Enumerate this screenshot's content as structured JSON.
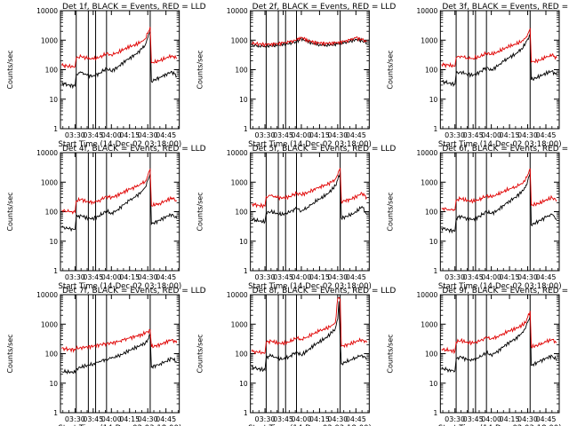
{
  "figure": {
    "colors": {
      "events": "#000000",
      "lld": "#e00000",
      "background": "#ffffff"
    },
    "x_tick_labels": [
      "03:30",
      "03:45",
      "04:00",
      "04:15",
      "04:30",
      "04:45"
    ],
    "x_tick_minutes": [
      210,
      225,
      240,
      255,
      270,
      285
    ],
    "y_tick_labels": [
      "1",
      "10",
      "100",
      "1000",
      "10000"
    ],
    "y_tick_values": [
      1,
      10,
      100,
      1000,
      10000
    ],
    "ylabel": "Counts/sec",
    "xlabel": "Start Time (14-Dec-02 03:18:00)",
    "xlim_minutes": [
      198,
      296
    ],
    "vertical_marker_minutes": [
      211,
      221,
      227,
      236,
      272
    ]
  },
  "chart_data": [
    {
      "type": "line",
      "title": "Det 1f, BLACK = Events, RED = LLD",
      "xlabel": "Start Time (14-Dec-02 03:18:00)",
      "ylabel": "Counts/sec",
      "ylim": [
        1,
        10000
      ],
      "yscale": "log",
      "series": [
        {
          "name": "Events",
          "color": "#000000",
          "x": [
            199,
            205,
            210,
            211,
            215,
            220,
            225,
            230,
            236,
            240,
            245,
            250,
            255,
            260,
            265,
            268,
            270,
            272,
            273,
            280,
            285,
            290,
            294
          ],
          "values": [
            35,
            30,
            28,
            70,
            80,
            65,
            60,
            75,
            110,
            90,
            120,
            180,
            250,
            330,
            500,
            700,
            1200,
            2000,
            40,
            55,
            70,
            85,
            60
          ]
        },
        {
          "name": "LLD",
          "color": "#e00000",
          "x": [
            199,
            205,
            210,
            211,
            215,
            220,
            225,
            230,
            236,
            240,
            245,
            250,
            255,
            260,
            265,
            268,
            270,
            272,
            273,
            280,
            285,
            290,
            294
          ],
          "values": [
            140,
            130,
            125,
            250,
            280,
            240,
            230,
            260,
            350,
            320,
            380,
            480,
            600,
            700,
            900,
            1100,
            1700,
            2800,
            170,
            200,
            250,
            300,
            240
          ]
        }
      ]
    },
    {
      "type": "line",
      "title": "Det 2f, BLACK = Events, RED = LLD",
      "xlabel": "Start Time (14-Dec-02 03:18:00)",
      "ylabel": "Counts/sec",
      "ylim": [
        1,
        10000
      ],
      "yscale": "log",
      "series": [
        {
          "name": "Events",
          "color": "#000000",
          "x": [
            199,
            205,
            210,
            215,
            220,
            225,
            230,
            236,
            240,
            245,
            250,
            255,
            260,
            265,
            270,
            275,
            280,
            285,
            290,
            294
          ],
          "values": [
            680,
            640,
            620,
            640,
            660,
            700,
            760,
            900,
            1100,
            900,
            760,
            700,
            680,
            700,
            740,
            800,
            900,
            1050,
            950,
            800
          ]
        },
        {
          "name": "LLD",
          "color": "#e00000",
          "x": [
            199,
            205,
            210,
            215,
            220,
            225,
            230,
            236,
            240,
            245,
            250,
            255,
            260,
            265,
            270,
            275,
            280,
            285,
            290,
            294
          ],
          "values": [
            780,
            740,
            720,
            740,
            760,
            800,
            860,
            1000,
            1250,
            1000,
            860,
            800,
            780,
            800,
            840,
            900,
            1000,
            1200,
            1050,
            900
          ]
        }
      ]
    },
    {
      "type": "line",
      "title": "Det 3f, BLACK = Events, RED = LLD",
      "xlabel": "Start Time (14-Dec-02 03:18:00)",
      "ylabel": "Counts/sec",
      "ylim": [
        1,
        10000
      ],
      "yscale": "log",
      "series": [
        {
          "name": "Events",
          "color": "#000000",
          "x": [
            199,
            205,
            210,
            211,
            215,
            220,
            225,
            230,
            236,
            240,
            245,
            250,
            255,
            260,
            265,
            268,
            270,
            272,
            273,
            280,
            285,
            290,
            294
          ],
          "values": [
            40,
            35,
            32,
            75,
            85,
            70,
            65,
            80,
            120,
            95,
            130,
            190,
            260,
            340,
            520,
            720,
            1100,
            1600,
            45,
            60,
            75,
            90,
            65
          ]
        },
        {
          "name": "LLD",
          "color": "#e00000",
          "x": [
            199,
            205,
            210,
            211,
            215,
            220,
            225,
            230,
            236,
            240,
            245,
            250,
            255,
            260,
            265,
            268,
            270,
            272,
            273,
            280,
            285,
            290,
            294
          ],
          "values": [
            150,
            140,
            130,
            260,
            290,
            250,
            240,
            270,
            360,
            330,
            390,
            500,
            620,
            720,
            920,
            1150,
            1600,
            2400,
            180,
            210,
            260,
            310,
            250
          ]
        }
      ]
    },
    {
      "type": "line",
      "title": "Det 4f, BLACK = Events, RED = LLD",
      "xlabel": "Start Time (14-Dec-02 03:18:00)",
      "ylabel": "Counts/sec",
      "ylim": [
        1,
        10000
      ],
      "yscale": "log",
      "series": [
        {
          "name": "Events",
          "color": "#000000",
          "x": [
            199,
            205,
            210,
            211,
            215,
            220,
            225,
            230,
            236,
            240,
            245,
            250,
            255,
            260,
            265,
            268,
            270,
            272,
            273,
            280,
            285,
            290,
            294
          ],
          "values": [
            30,
            26,
            25,
            65,
            75,
            60,
            58,
            72,
            105,
            88,
            115,
            170,
            240,
            320,
            480,
            680,
            1150,
            1900,
            38,
            52,
            68,
            82,
            58
          ]
        },
        {
          "name": "LLD",
          "color": "#e00000",
          "x": [
            199,
            205,
            210,
            211,
            215,
            220,
            225,
            230,
            236,
            240,
            245,
            250,
            255,
            260,
            265,
            268,
            270,
            272,
            273,
            280,
            285,
            290,
            294
          ],
          "values": [
            110,
            100,
            95,
            230,
            260,
            220,
            210,
            240,
            330,
            300,
            360,
            460,
            580,
            680,
            880,
            1080,
            1650,
            2700,
            160,
            190,
            240,
            290,
            230
          ]
        }
      ]
    },
    {
      "type": "line",
      "title": "Det 5f, BLACK = Events, RED = LLD",
      "xlabel": "Start Time (14-Dec-02 03:18:00)",
      "ylabel": "Counts/sec",
      "ylim": [
        1,
        10000
      ],
      "yscale": "log",
      "series": [
        {
          "name": "Events",
          "color": "#000000",
          "x": [
            199,
            205,
            210,
            211,
            215,
            220,
            225,
            230,
            236,
            240,
            245,
            250,
            255,
            260,
            265,
            268,
            270,
            272,
            273,
            280,
            285,
            290,
            294
          ],
          "values": [
            55,
            48,
            45,
            90,
            100,
            85,
            80,
            95,
            130,
            105,
            140,
            200,
            270,
            350,
            540,
            760,
            1200,
            2100,
            60,
            75,
            95,
            150,
            80
          ]
        },
        {
          "name": "LLD",
          "color": "#e00000",
          "x": [
            199,
            205,
            210,
            211,
            215,
            220,
            225,
            230,
            236,
            240,
            245,
            250,
            255,
            260,
            265,
            268,
            270,
            272,
            273,
            280,
            285,
            290,
            294
          ],
          "values": [
            180,
            165,
            155,
            320,
            350,
            300,
            290,
            320,
            420,
            380,
            440,
            560,
            700,
            800,
            1000,
            1250,
            1800,
            3000,
            220,
            260,
            320,
            420,
            300
          ]
        }
      ]
    },
    {
      "type": "line",
      "title": "Det 6f, BLACK = Events, RED = LLD",
      "xlabel": "Start Time (14-Dec-02 03:18:00)",
      "ylabel": "Counts/sec",
      "ylim": [
        1,
        10000
      ],
      "yscale": "log",
      "series": [
        {
          "name": "Events",
          "color": "#000000",
          "x": [
            199,
            205,
            210,
            211,
            215,
            220,
            225,
            230,
            236,
            240,
            245,
            250,
            255,
            260,
            265,
            268,
            270,
            272,
            273,
            280,
            285,
            290,
            294
          ],
          "values": [
            28,
            24,
            22,
            60,
            70,
            58,
            55,
            68,
            100,
            85,
            110,
            165,
            230,
            310,
            470,
            650,
            1100,
            2000,
            35,
            50,
            65,
            80,
            55
          ]
        },
        {
          "name": "LLD",
          "color": "#e00000",
          "x": [
            199,
            205,
            210,
            211,
            215,
            220,
            225,
            230,
            236,
            240,
            245,
            250,
            255,
            260,
            265,
            268,
            270,
            272,
            273,
            280,
            285,
            290,
            294
          ],
          "values": [
            130,
            120,
            115,
            250,
            280,
            235,
            225,
            255,
            345,
            315,
            375,
            475,
            600,
            700,
            900,
            1120,
            1750,
            2900,
            165,
            195,
            245,
            300,
            235
          ]
        }
      ]
    },
    {
      "type": "line",
      "title": "Det 7f, BLACK = Events, RED = LLD",
      "xlabel": "Start Time (14-Dec-02 03:18:00)",
      "ylabel": "Counts/sec",
      "ylim": [
        1,
        10000
      ],
      "yscale": "log",
      "series": [
        {
          "name": "Events",
          "color": "#000000",
          "x": [
            199,
            205,
            210,
            211,
            215,
            220,
            225,
            230,
            236,
            240,
            245,
            250,
            255,
            260,
            265,
            268,
            270,
            272,
            273,
            280,
            285,
            290,
            294
          ],
          "values": [
            25,
            24,
            23,
            30,
            35,
            40,
            45,
            55,
            65,
            70,
            80,
            100,
            130,
            160,
            200,
            230,
            300,
            420,
            35,
            45,
            55,
            70,
            50
          ]
        },
        {
          "name": "LLD",
          "color": "#e00000",
          "x": [
            199,
            205,
            210,
            211,
            215,
            220,
            225,
            230,
            236,
            240,
            245,
            250,
            255,
            260,
            265,
            268,
            270,
            272,
            273,
            280,
            285,
            290,
            294
          ],
          "values": [
            150,
            140,
            135,
            150,
            160,
            170,
            180,
            200,
            220,
            230,
            250,
            290,
            340,
            390,
            450,
            500,
            560,
            650,
            170,
            200,
            250,
            300,
            230
          ]
        }
      ]
    },
    {
      "type": "line",
      "title": "Det 8f, BLACK = Events, RED = LLD",
      "xlabel": "Start Time (14-Dec-02 03:18:00)",
      "ylabel": "Counts/sec",
      "ylim": [
        1,
        10000
      ],
      "yscale": "log",
      "series": [
        {
          "name": "Events",
          "color": "#000000",
          "x": [
            199,
            205,
            210,
            211,
            215,
            220,
            225,
            230,
            236,
            240,
            245,
            250,
            255,
            260,
            265,
            268,
            270,
            271,
            272,
            273,
            280,
            285,
            290,
            294
          ],
          "values": [
            35,
            30,
            28,
            75,
            85,
            70,
            65,
            80,
            115,
            90,
            125,
            185,
            255,
            335,
            510,
            700,
            1500,
            6000,
            300,
            45,
            60,
            75,
            90,
            65
          ]
        },
        {
          "name": "LLD",
          "color": "#e00000",
          "x": [
            199,
            205,
            210,
            211,
            215,
            220,
            225,
            230,
            236,
            240,
            245,
            250,
            255,
            260,
            265,
            268,
            270,
            271,
            272,
            273,
            280,
            285,
            290,
            294
          ],
          "values": [
            120,
            110,
            105,
            240,
            270,
            230,
            220,
            250,
            340,
            310,
            370,
            470,
            590,
            690,
            890,
            1100,
            7500,
            8000,
            7000,
            180,
            210,
            260,
            300,
            240
          ]
        }
      ]
    },
    {
      "type": "line",
      "title": "Det 9f, BLACK = Events, RED = LLD",
      "xlabel": "Start Time (14-Dec-02 03:18:00)",
      "ylabel": "Counts/sec",
      "ylim": [
        1,
        10000
      ],
      "yscale": "log",
      "series": [
        {
          "name": "Events",
          "color": "#000000",
          "x": [
            199,
            205,
            210,
            211,
            215,
            220,
            225,
            230,
            236,
            240,
            245,
            250,
            255,
            260,
            265,
            268,
            270,
            272,
            273,
            280,
            285,
            290,
            294
          ],
          "values": [
            32,
            28,
            26,
            68,
            78,
            62,
            60,
            74,
            108,
            90,
            118,
            175,
            245,
            325,
            490,
            690,
            1150,
            1900,
            40,
            55,
            70,
            85,
            60
          ]
        },
        {
          "name": "LLD",
          "color": "#e00000",
          "x": [
            199,
            205,
            210,
            211,
            215,
            220,
            225,
            230,
            236,
            240,
            245,
            250,
            255,
            260,
            265,
            268,
            270,
            272,
            273,
            280,
            285,
            290,
            294
          ],
          "values": [
            140,
            130,
            120,
            250,
            280,
            240,
            230,
            260,
            350,
            320,
            380,
            480,
            600,
            700,
            900,
            1100,
            1700,
            2800,
            170,
            200,
            250,
            300,
            240
          ]
        }
      ]
    }
  ]
}
